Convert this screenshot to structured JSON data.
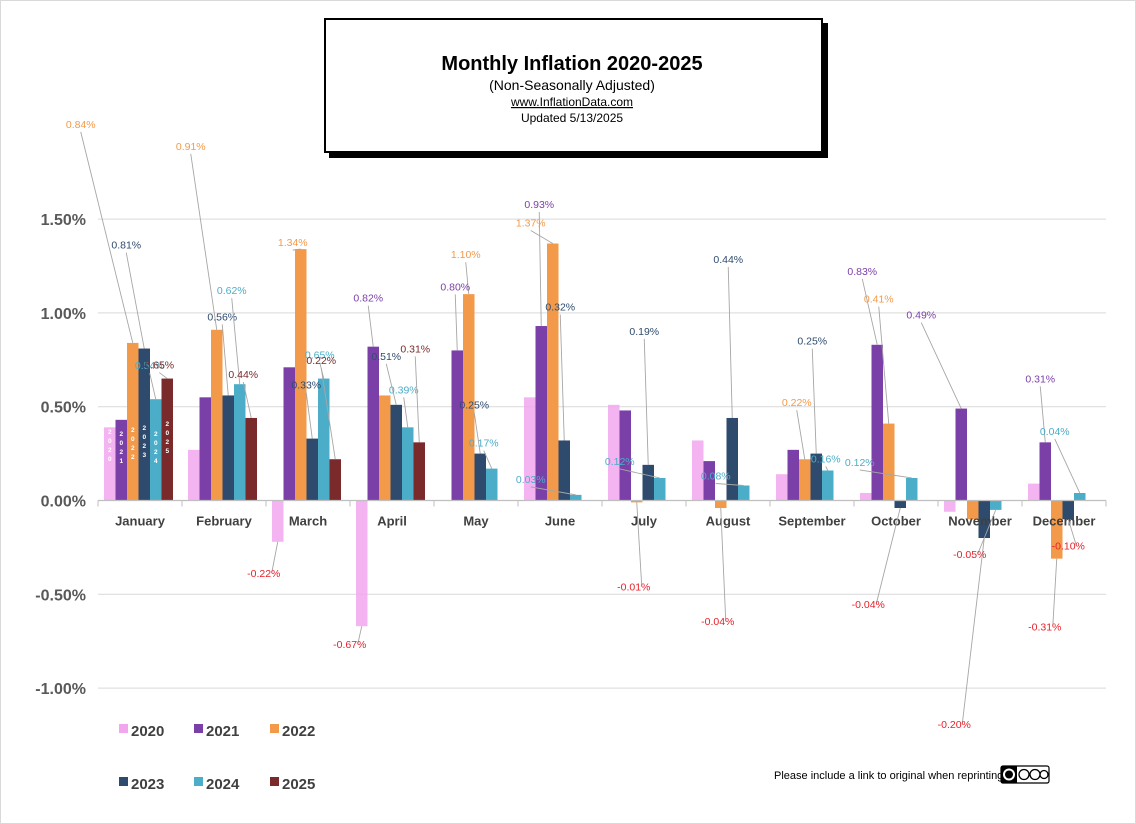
{
  "chart_data": {
    "type": "bar",
    "title": "Monthly Inflation 2020-2025",
    "subtitle": "(Non-Seasonally  Adjusted)",
    "source": "www.InflationData.com",
    "updated": "Updated   5/13/2025",
    "footer": "Please include a link to original when reprinting",
    "ylim": [
      -1.0,
      1.5
    ],
    "yticks": [
      {
        "value": 1.5,
        "label": "1.50%"
      },
      {
        "value": 1.0,
        "label": "1.00%"
      },
      {
        "value": 0.5,
        "label": "0.50%"
      },
      {
        "value": 0.0,
        "label": "0.00%"
      },
      {
        "value": -0.5,
        "label": "-0.50%"
      },
      {
        "value": -1.0,
        "label": "-1.00%"
      }
    ],
    "grid": true,
    "legend_position": "bottom-left",
    "categories": [
      "January",
      "February",
      "March",
      "April",
      "May",
      "June",
      "July",
      "August",
      "September",
      "October",
      "November",
      "December"
    ],
    "series": [
      {
        "name": "2020",
        "color": "#f2a6ee",
        "values": [
          0.39,
          0.27,
          -0.22,
          -0.67,
          0.0,
          0.55,
          0.51,
          0.32,
          0.14,
          0.04,
          -0.06,
          0.09
        ]
      },
      {
        "name": "2021",
        "color": "#7b3fa8",
        "values": [
          0.43,
          0.55,
          0.71,
          0.82,
          0.8,
          0.93,
          0.48,
          0.21,
          0.27,
          0.83,
          0.49,
          0.31
        ]
      },
      {
        "name": "2022",
        "color": "#f39a4a",
        "values": [
          0.84,
          0.91,
          1.34,
          0.56,
          1.1,
          1.37,
          -0.01,
          -0.04,
          0.22,
          0.41,
          -0.1,
          -0.31
        ]
      },
      {
        "name": "2023",
        "color": "#2e4b6e",
        "values": [
          0.81,
          0.56,
          0.33,
          0.51,
          0.25,
          0.32,
          0.19,
          0.44,
          0.25,
          -0.04,
          -0.2,
          -0.1
        ]
      },
      {
        "name": "2024",
        "color": "#4cadc9",
        "values": [
          0.54,
          0.62,
          0.65,
          0.39,
          0.17,
          0.03,
          0.12,
          0.08,
          0.16,
          0.12,
          -0.05,
          0.04
        ]
      },
      {
        "name": "2025",
        "color": "#7a2a2a",
        "values": [
          0.65,
          0.44,
          0.22,
          0.31,
          null,
          null,
          null,
          null,
          null,
          null,
          null,
          null
        ]
      }
    ],
    "bar_year_labels": [
      "2020",
      "2021",
      "2022",
      "2023",
      "2024",
      "2025"
    ],
    "annotations": [
      {
        "text": "0.84%",
        "series": "2022",
        "category": "January"
      },
      {
        "text": "0.81%",
        "series": "2023",
        "category": "January"
      },
      {
        "text": "0.54%",
        "series": "2024",
        "category": "January"
      },
      {
        "text": "0.65%",
        "series": "2025",
        "category": "January"
      },
      {
        "text": "0.91%",
        "series": "2022",
        "category": "February"
      },
      {
        "text": "0.56%",
        "series": "2023",
        "category": "February"
      },
      {
        "text": "0.62%",
        "series": "2024",
        "category": "February"
      },
      {
        "text": "0.44%",
        "series": "2025",
        "category": "February"
      },
      {
        "text": "1.34%",
        "series": "2022",
        "category": "March"
      },
      {
        "text": "0.33%",
        "series": "2023",
        "category": "March"
      },
      {
        "text": "0.65%",
        "series": "2024",
        "category": "March"
      },
      {
        "text": "0.22%",
        "series": "2025",
        "category": "March"
      },
      {
        "text": "-0.22%",
        "series": "2020",
        "category": "March"
      },
      {
        "text": "0.82%",
        "series": "2021",
        "category": "April"
      },
      {
        "text": "0.51%",
        "series": "2023",
        "category": "April"
      },
      {
        "text": "0.39%",
        "series": "2024",
        "category": "April"
      },
      {
        "text": "0.31%",
        "series": "2025",
        "category": "April"
      },
      {
        "text": "-0.67%",
        "series": "2020",
        "category": "April"
      },
      {
        "text": "1.10%",
        "series": "2022",
        "category": "May"
      },
      {
        "text": "0.80%",
        "series": "2021",
        "category": "May"
      },
      {
        "text": "0.25%",
        "series": "2023",
        "category": "May"
      },
      {
        "text": "0.17%",
        "series": "2024",
        "category": "May"
      },
      {
        "text": "1.37%",
        "series": "2022",
        "category": "June"
      },
      {
        "text": "0.93%",
        "series": "2021",
        "category": "June"
      },
      {
        "text": "0.32%",
        "series": "2023",
        "category": "June"
      },
      {
        "text": "0.03%",
        "series": "2024",
        "category": "June"
      },
      {
        "text": "-0.01%",
        "series": "2022",
        "category": "July"
      },
      {
        "text": "0.19%",
        "series": "2023",
        "category": "July"
      },
      {
        "text": "0.12%",
        "series": "2024",
        "category": "July"
      },
      {
        "text": "-0.04%",
        "series": "2022",
        "category": "August"
      },
      {
        "text": "0.44%",
        "series": "2023",
        "category": "August"
      },
      {
        "text": "0.08%",
        "series": "2024",
        "category": "August"
      },
      {
        "text": "0.22%",
        "series": "2022",
        "category": "September"
      },
      {
        "text": "0.25%",
        "series": "2023",
        "category": "September"
      },
      {
        "text": "0.16%",
        "series": "2024",
        "category": "September"
      },
      {
        "text": "0.83%",
        "series": "2021",
        "category": "October"
      },
      {
        "text": "0.41%",
        "series": "2022",
        "category": "October"
      },
      {
        "text": "0.12%",
        "series": "2024",
        "category": "October"
      },
      {
        "text": "-0.04%",
        "series": "2023",
        "category": "October"
      },
      {
        "text": "0.49%",
        "series": "2021",
        "category": "November"
      },
      {
        "text": "-0.20%",
        "series": "2023",
        "category": "November"
      },
      {
        "text": "-0.05%",
        "series": "2024",
        "category": "November"
      },
      {
        "text": "0.31%",
        "series": "2021",
        "category": "December"
      },
      {
        "text": "0.04%",
        "series": "2024",
        "category": "December"
      },
      {
        "text": "-0.31%",
        "series": "2022",
        "category": "December"
      },
      {
        "text": "-0.10%",
        "series": "2023",
        "category": "December"
      }
    ],
    "annotation_colors": {
      "negative": "#e8202a"
    }
  }
}
